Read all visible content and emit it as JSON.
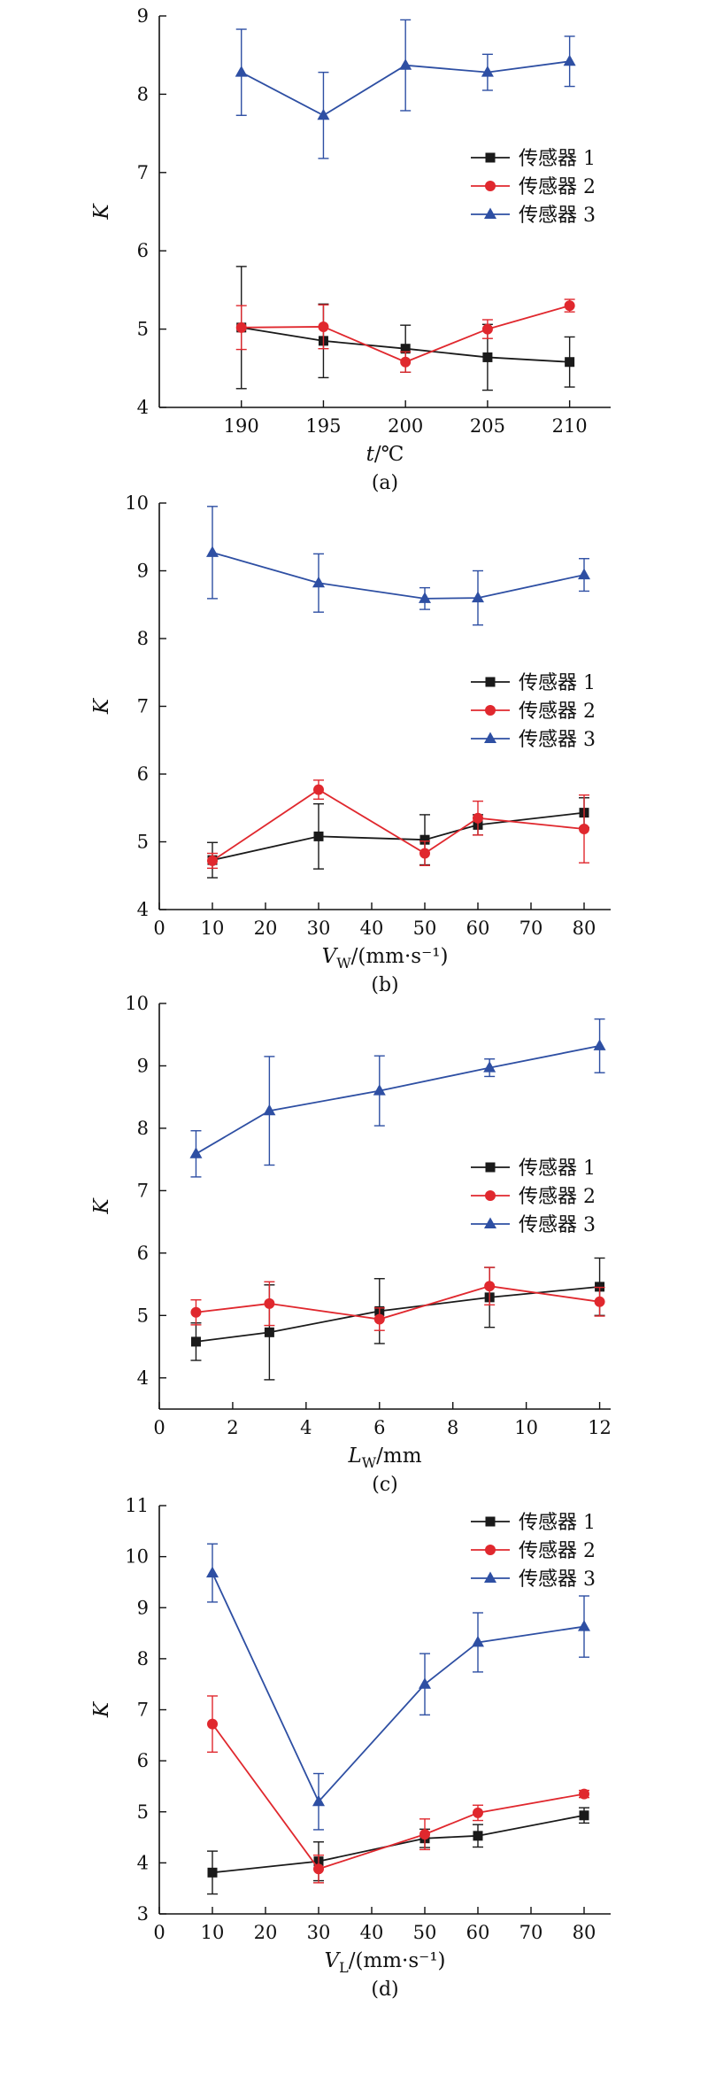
{
  "series_colors": {
    "sensor1": "#1a1a1a",
    "sensor2": "#e0282e",
    "sensor3": "#2e4fa3"
  },
  "chart_data": [
    {
      "type": "line",
      "caption": "(a)",
      "x": [
        190,
        195,
        200,
        205,
        210
      ],
      "xlim": [
        185,
        212.5
      ],
      "xticks": [
        190,
        195,
        200,
        205,
        210
      ],
      "ylim": [
        4,
        9
      ],
      "yticks": [
        4,
        5,
        6,
        7,
        8,
        9
      ],
      "xlabel": {
        "main": "t",
        "sub": "",
        "tail": "/℃"
      },
      "ylabel": "K",
      "legend": "middle-right",
      "series": [
        {
          "name": "传感器 1",
          "marker": "square",
          "color": "#1a1a1a",
          "values": [
            5.02,
            4.85,
            4.75,
            4.64,
            4.58
          ],
          "errors": [
            0.78,
            0.47,
            0.3,
            0.42,
            0.32
          ]
        },
        {
          "name": "传感器 2",
          "marker": "circle",
          "color": "#e0282e",
          "values": [
            5.02,
            5.03,
            4.58,
            5.0,
            5.3
          ],
          "errors": [
            0.28,
            0.28,
            0.13,
            0.12,
            0.08
          ]
        },
        {
          "name": "传感器 3",
          "marker": "triangle",
          "color": "#2e4fa3",
          "values": [
            8.28,
            7.73,
            8.37,
            8.28,
            8.42
          ],
          "errors": [
            0.55,
            0.55,
            0.58,
            0.23,
            0.32
          ]
        }
      ]
    },
    {
      "type": "line",
      "caption": "(b)",
      "x": [
        10,
        30,
        50,
        60,
        80
      ],
      "xlim": [
        0,
        85
      ],
      "xticks": [
        0,
        10,
        20,
        30,
        40,
        50,
        60,
        70,
        80
      ],
      "ylim": [
        4,
        10
      ],
      "yticks": [
        4,
        5,
        6,
        7,
        8,
        9,
        10
      ],
      "xlabel": {
        "main": "V",
        "sub": "W",
        "tail": "/(mm·s⁻¹)"
      },
      "ylabel": "K",
      "legend": "middle-right",
      "series": [
        {
          "name": "传感器 1",
          "marker": "square",
          "color": "#1a1a1a",
          "values": [
            4.73,
            5.08,
            5.03,
            5.25,
            5.43
          ],
          "errors": [
            0.26,
            0.48,
            0.37,
            0.15,
            0.22
          ]
        },
        {
          "name": "传感器 2",
          "marker": "circle",
          "color": "#e0282e",
          "values": [
            4.72,
            5.77,
            4.83,
            5.35,
            5.19
          ],
          "errors": [
            0.11,
            0.14,
            0.18,
            0.25,
            0.5
          ]
        },
        {
          "name": "传感器 3",
          "marker": "triangle",
          "color": "#2e4fa3",
          "values": [
            9.27,
            8.82,
            8.59,
            8.6,
            8.94
          ],
          "errors": [
            0.68,
            0.43,
            0.16,
            0.4,
            0.24
          ]
        }
      ]
    },
    {
      "type": "line",
      "caption": "(c)",
      "x": [
        1,
        3,
        6,
        9,
        12
      ],
      "xlim": [
        0,
        12.3
      ],
      "xticks": [
        0,
        2,
        4,
        6,
        8,
        10,
        12
      ],
      "ylim": [
        3.5,
        10
      ],
      "yticks": [
        4,
        5,
        6,
        7,
        8,
        9,
        10
      ],
      "xlabel": {
        "main": "L",
        "sub": "W",
        "tail": "/mm"
      },
      "ylabel": "K",
      "legend": "middle-right",
      "series": [
        {
          "name": "传感器 1",
          "marker": "square",
          "color": "#1a1a1a",
          "values": [
            4.58,
            4.73,
            5.07,
            5.29,
            5.46
          ],
          "errors": [
            0.3,
            0.76,
            0.52,
            0.48,
            0.46
          ]
        },
        {
          "name": "传感器 2",
          "marker": "circle",
          "color": "#e0282e",
          "values": [
            5.05,
            5.19,
            4.94,
            5.47,
            5.22
          ],
          "errors": [
            0.2,
            0.35,
            0.18,
            0.3,
            0.23
          ]
        },
        {
          "name": "传感器 3",
          "marker": "triangle",
          "color": "#2e4fa3",
          "values": [
            7.59,
            8.28,
            8.6,
            8.97,
            9.32
          ],
          "errors": [
            0.37,
            0.87,
            0.56,
            0.14,
            0.43
          ]
        }
      ]
    },
    {
      "type": "line",
      "caption": "(d)",
      "x": [
        10,
        30,
        50,
        60,
        80
      ],
      "xlim": [
        0,
        85
      ],
      "xticks": [
        0,
        10,
        20,
        30,
        40,
        50,
        60,
        70,
        80
      ],
      "ylim": [
        3,
        11
      ],
      "yticks": [
        3,
        4,
        5,
        6,
        7,
        8,
        9,
        10,
        11
      ],
      "xlabel": {
        "main": "V",
        "sub": "L",
        "tail": "/(mm·s⁻¹)"
      },
      "ylabel": "K",
      "legend": "top-right",
      "series": [
        {
          "name": "传感器 1",
          "marker": "square",
          "color": "#1a1a1a",
          "values": [
            3.81,
            4.03,
            4.48,
            4.53,
            4.93
          ],
          "errors": [
            0.42,
            0.38,
            0.18,
            0.22,
            0.15
          ]
        },
        {
          "name": "传感器 2",
          "marker": "circle",
          "color": "#e0282e",
          "values": [
            6.72,
            3.88,
            4.56,
            4.98,
            5.35
          ],
          "errors": [
            0.55,
            0.27,
            0.3,
            0.15,
            0.07
          ]
        },
        {
          "name": "传感器 3",
          "marker": "triangle",
          "color": "#2e4fa3",
          "values": [
            9.68,
            5.2,
            7.5,
            8.32,
            8.63
          ],
          "errors": [
            0.57,
            0.55,
            0.6,
            0.58,
            0.6
          ]
        }
      ]
    }
  ]
}
